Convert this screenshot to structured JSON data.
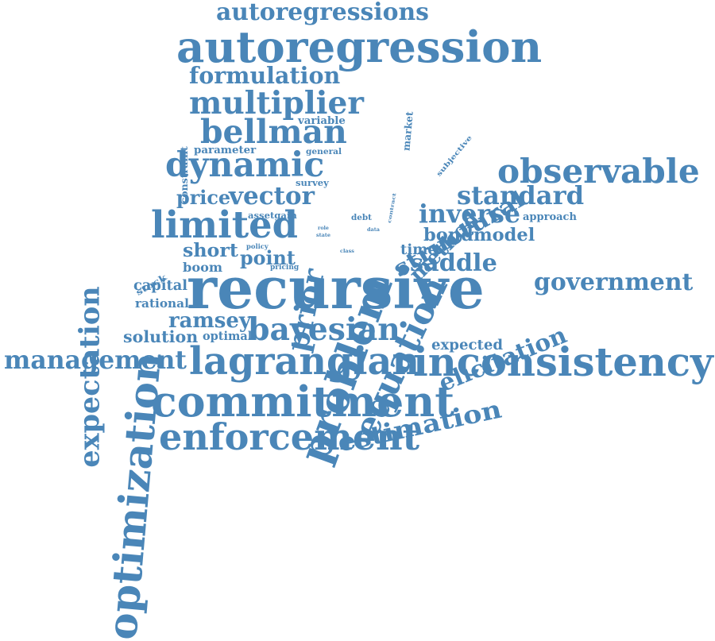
{
  "word_color": "#4a86b8",
  "words": [
    {
      "id": "recursive",
      "text": "recursive"
    },
    {
      "id": "autoregression",
      "text": "autoregression"
    },
    {
      "id": "autoregressions",
      "text": "autoregressions"
    },
    {
      "id": "formulation",
      "text": "formulation"
    },
    {
      "id": "multiplier",
      "text": "multiplier"
    },
    {
      "id": "bellman",
      "text": "bellman"
    },
    {
      "id": "dynamic",
      "text": "dynamic"
    },
    {
      "id": "vector",
      "text": "vector"
    },
    {
      "id": "price",
      "text": "price"
    },
    {
      "id": "limited",
      "text": "limited"
    },
    {
      "id": "optimization",
      "text": "optimization"
    },
    {
      "id": "expectation",
      "text": "expectation"
    },
    {
      "id": "problem",
      "text": "problem"
    },
    {
      "id": "prior",
      "text": "prior"
    },
    {
      "id": "equation",
      "text": "equation"
    },
    {
      "id": "method",
      "text": "method"
    },
    {
      "id": "structural",
      "text": "structural"
    },
    {
      "id": "observable",
      "text": "observable"
    },
    {
      "id": "standard",
      "text": "standard"
    },
    {
      "id": "inverse",
      "text": "inverse"
    },
    {
      "id": "approach",
      "text": "approach"
    },
    {
      "id": "bondmodel",
      "text": "bondmodel"
    },
    {
      "id": "elicitation",
      "text": "elicitation"
    },
    {
      "id": "time",
      "text": "time"
    },
    {
      "id": "saddle",
      "text": "saddle"
    },
    {
      "id": "government",
      "text": "government"
    },
    {
      "id": "estimation",
      "text": "estimation"
    },
    {
      "id": "expected",
      "text": "expected"
    },
    {
      "id": "bayesian",
      "text": "bayesian"
    },
    {
      "id": "ramsey",
      "text": "ramsey"
    },
    {
      "id": "solution",
      "text": "solution"
    },
    {
      "id": "optimal",
      "text": "optimal"
    },
    {
      "id": "rational",
      "text": "rational"
    },
    {
      "id": "capital",
      "text": "capital"
    },
    {
      "id": "boom",
      "text": "boom"
    },
    {
      "id": "short",
      "text": "short"
    },
    {
      "id": "point",
      "text": "point"
    },
    {
      "id": "stock",
      "text": "stock"
    },
    {
      "id": "management",
      "text": "management"
    },
    {
      "id": "lagrangian",
      "text": "lagrangian"
    },
    {
      "id": "inconsistency",
      "text": "inconsistency"
    },
    {
      "id": "commitment",
      "text": "commitment"
    },
    {
      "id": "enforcement",
      "text": "enforcement"
    },
    {
      "id": "market",
      "text": "market"
    },
    {
      "id": "contract",
      "text": "contract"
    },
    {
      "id": "subjective",
      "text": "subjective"
    },
    {
      "id": "constraint",
      "text": "constraint"
    },
    {
      "id": "variable",
      "text": "variable"
    },
    {
      "id": "parameter",
      "text": "parameter"
    },
    {
      "id": "general",
      "text": "general"
    },
    {
      "id": "survey",
      "text": "survey"
    },
    {
      "id": "assetgain",
      "text": "assetgain"
    },
    {
      "id": "debt",
      "text": "debt"
    },
    {
      "id": "data",
      "text": "data"
    },
    {
      "id": "role",
      "text": "role"
    },
    {
      "id": "state",
      "text": "state"
    },
    {
      "id": "policy",
      "text": "policy"
    },
    {
      "id": "class",
      "text": "class"
    },
    {
      "id": "pricing",
      "text": "pricing"
    }
  ]
}
